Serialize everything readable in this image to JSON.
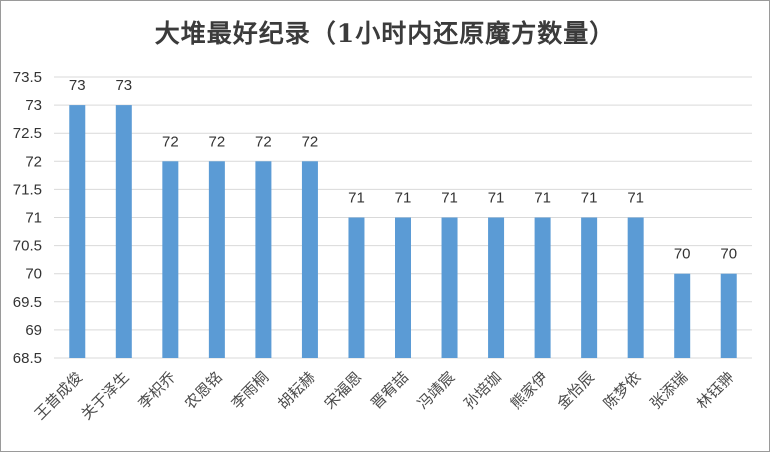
{
  "chart_data": {
    "type": "bar",
    "title": "大堆最好纪录（1小时内还原魔方数量）",
    "xlabel": "",
    "ylabel": "",
    "categories": [
      "王昔成俊",
      "关于泽生",
      "李枳乔",
      "农恩铭",
      "李雨桐",
      "胡耘赫",
      "宋福恩",
      "晋宥喆",
      "冯靖宸",
      "孙培珈",
      "熊家伊",
      "金怡辰",
      "陈梦依",
      "张添瑞",
      "林钰翀"
    ],
    "values": [
      73,
      73,
      72,
      72,
      72,
      72,
      71,
      71,
      71,
      71,
      71,
      71,
      71,
      70,
      70
    ],
    "data_labels": [
      "73",
      "73",
      "72",
      "72",
      "72",
      "72",
      "71",
      "71",
      "71",
      "71",
      "71",
      "71",
      "71",
      "70",
      "70"
    ],
    "ylim": [
      68.5,
      73.5
    ],
    "yticks": [
      "68.5",
      "69",
      "69.5",
      "70",
      "70.5",
      "71",
      "71.5",
      "72",
      "72.5",
      "73",
      "73.5"
    ],
    "grid": true,
    "legend": "none",
    "bar_color": "#5b9bd5"
  }
}
